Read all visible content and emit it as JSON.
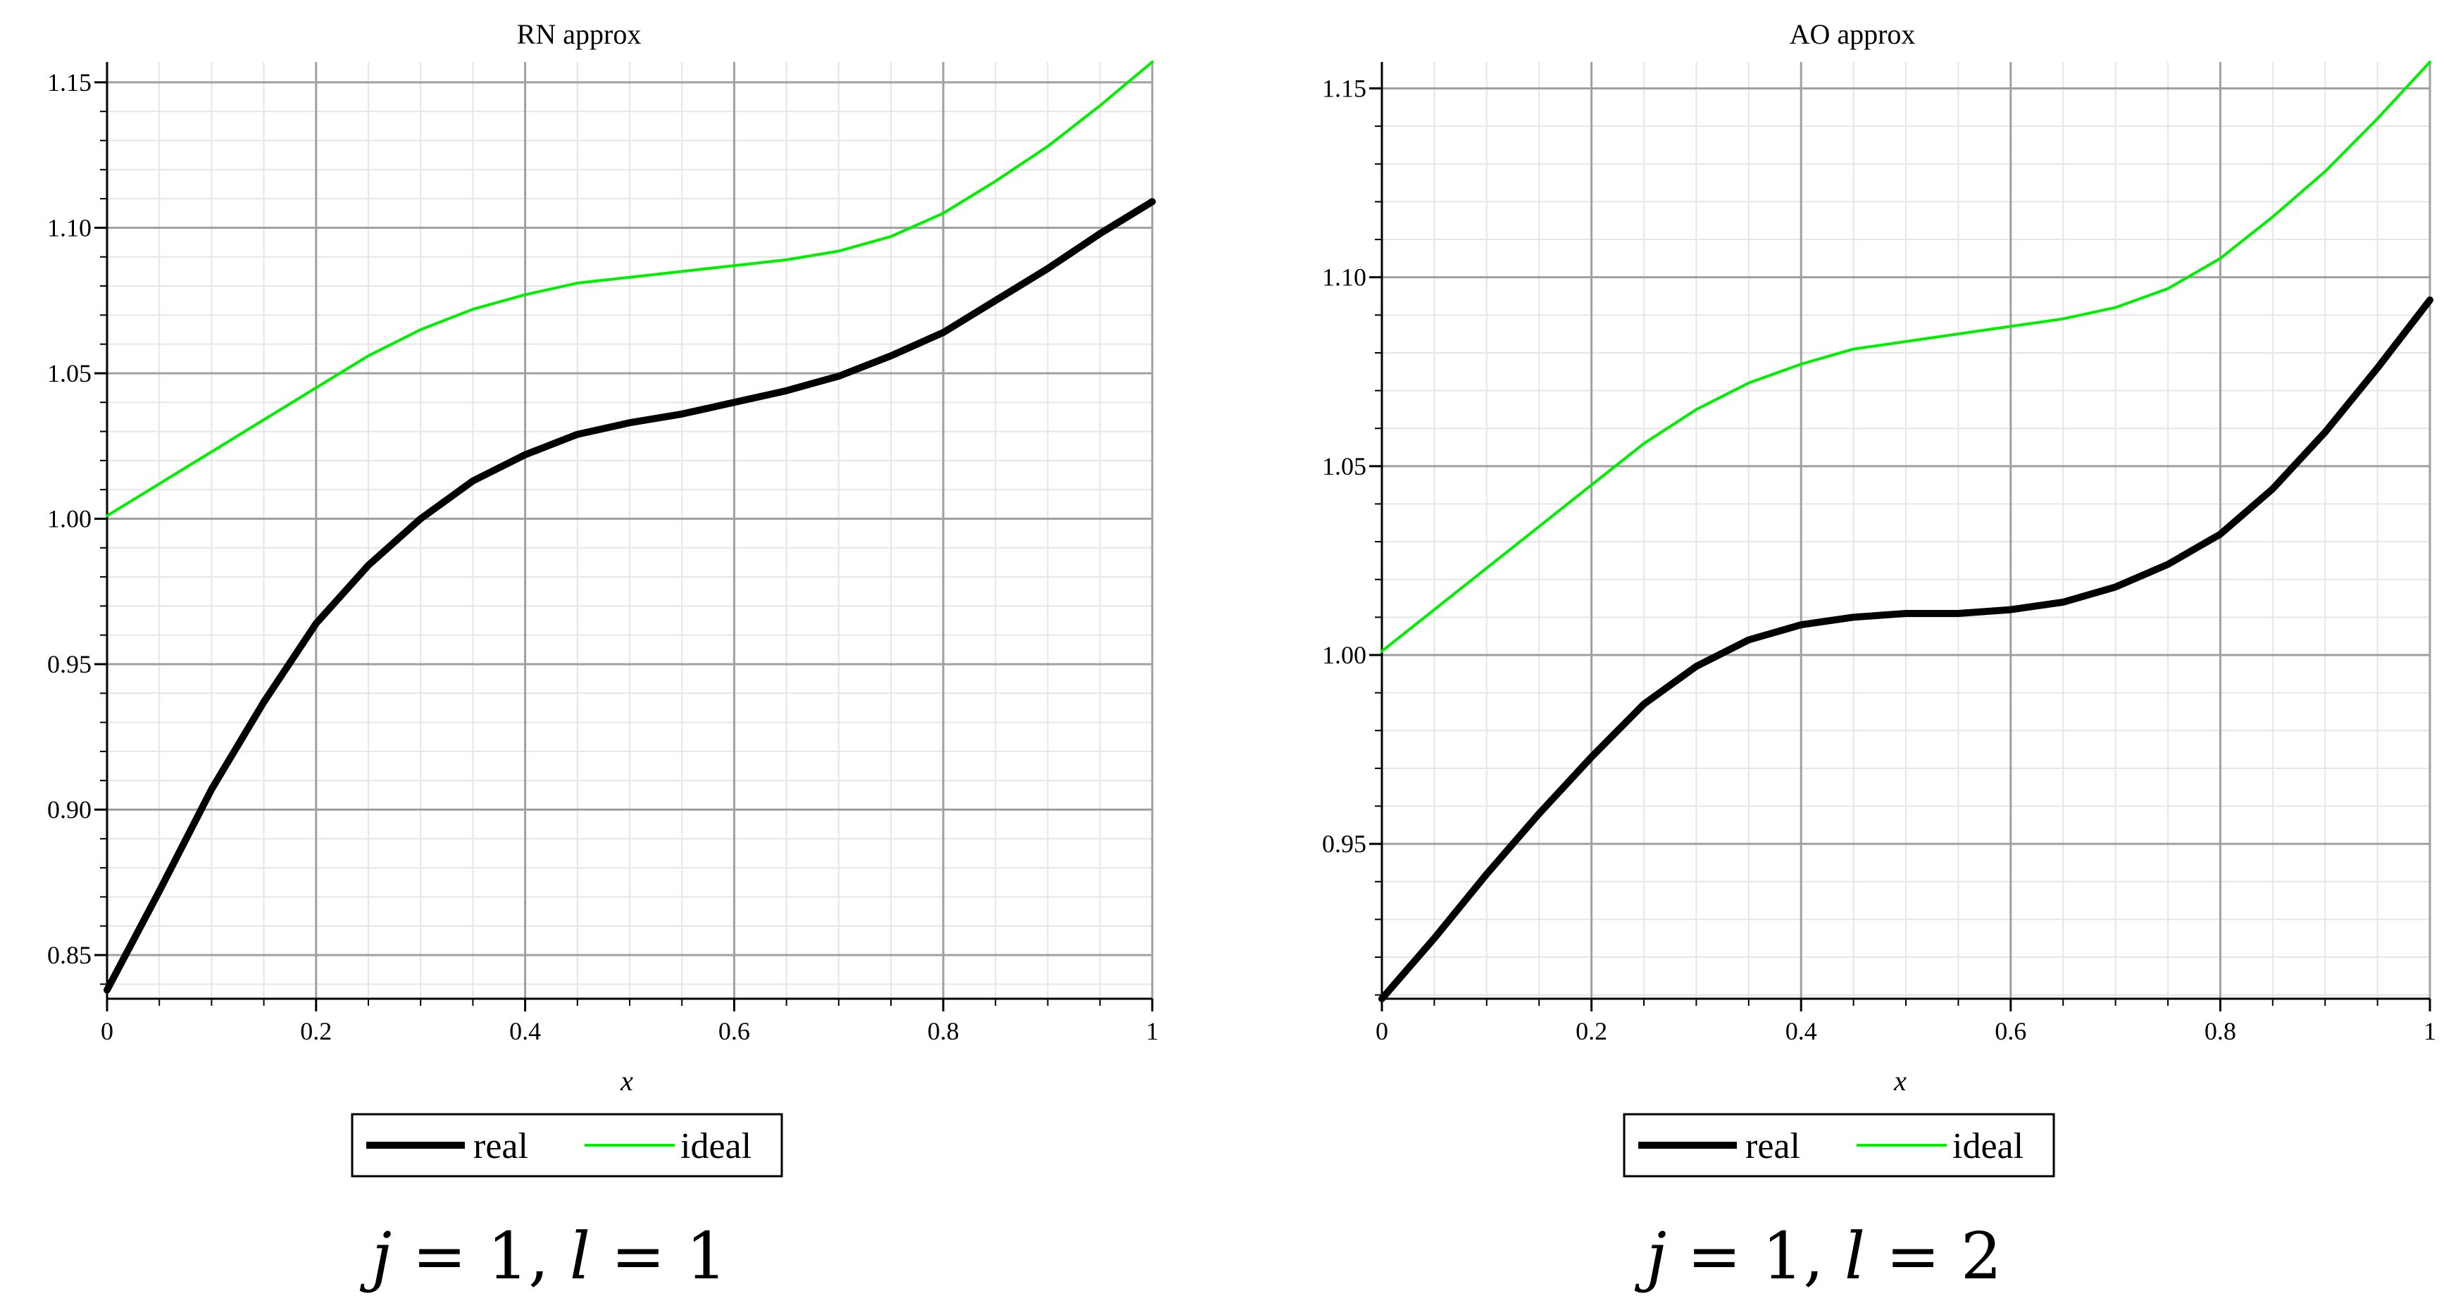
{
  "chart_data": [
    {
      "type": "line",
      "title": "RN  approx",
      "xlabel": "x",
      "ylabel": "",
      "xlim": [
        0,
        1
      ],
      "ylim": [
        0.835,
        1.157
      ],
      "xticks": [
        0,
        0.2,
        0.4,
        0.6,
        0.8,
        1
      ],
      "xtick_labels": [
        "0",
        "0.2",
        "0.4",
        "0.6",
        "0.8",
        "1"
      ],
      "yticks": [
        0.85,
        0.9,
        0.95,
        1.0,
        1.05,
        1.1,
        1.15
      ],
      "ytick_labels": [
        "0.85",
        "0.90",
        "0.95",
        "1.00",
        "1.05",
        "1.10",
        "1.15"
      ],
      "grid": true,
      "legend_position": "bottom-center",
      "series": [
        {
          "name": "real",
          "color": "#000000",
          "x": [
            0,
            0.05,
            0.1,
            0.15,
            0.2,
            0.25,
            0.3,
            0.35,
            0.4,
            0.45,
            0.5,
            0.55,
            0.6,
            0.65,
            0.7,
            0.75,
            0.8,
            0.85,
            0.9,
            0.95,
            1
          ],
          "y": [
            0.838,
            0.872,
            0.907,
            0.937,
            0.964,
            0.984,
            1.0,
            1.013,
            1.022,
            1.029,
            1.033,
            1.036,
            1.04,
            1.044,
            1.049,
            1.056,
            1.064,
            1.075,
            1.086,
            1.098,
            1.109
          ]
        },
        {
          "name": "ideal",
          "color": "#00ee00",
          "x": [
            0,
            0.05,
            0.1,
            0.15,
            0.2,
            0.25,
            0.3,
            0.35,
            0.4,
            0.45,
            0.5,
            0.55,
            0.6,
            0.65,
            0.7,
            0.75,
            0.8,
            0.85,
            0.9,
            0.95,
            1
          ],
          "y": [
            1.001,
            1.012,
            1.023,
            1.034,
            1.045,
            1.056,
            1.065,
            1.072,
            1.077,
            1.081,
            1.083,
            1.085,
            1.087,
            1.089,
            1.092,
            1.097,
            1.105,
            1.116,
            1.128,
            1.142,
            1.157
          ]
        }
      ]
    },
    {
      "type": "line",
      "title": "AO  approx",
      "xlabel": "x",
      "ylabel": "",
      "xlim": [
        0,
        1
      ],
      "ylim": [
        0.909,
        1.157
      ],
      "xticks": [
        0,
        0.2,
        0.4,
        0.6,
        0.8,
        1
      ],
      "xtick_labels": [
        "0",
        "0.2",
        "0.4",
        "0.6",
        "0.8",
        "1"
      ],
      "yticks": [
        0.95,
        1.0,
        1.05,
        1.1,
        1.15
      ],
      "ytick_labels": [
        "0.95",
        "1.00",
        "1.05",
        "1.10",
        "1.15"
      ],
      "grid": true,
      "legend_position": "bottom-center",
      "series": [
        {
          "name": "real",
          "color": "#000000",
          "x": [
            0,
            0.05,
            0.1,
            0.15,
            0.2,
            0.25,
            0.3,
            0.35,
            0.4,
            0.45,
            0.5,
            0.55,
            0.6,
            0.65,
            0.7,
            0.75,
            0.8,
            0.85,
            0.9,
            0.95,
            1
          ],
          "y": [
            0.909,
            0.925,
            0.942,
            0.958,
            0.973,
            0.987,
            0.997,
            1.004,
            1.008,
            1.01,
            1.011,
            1.011,
            1.012,
            1.014,
            1.018,
            1.024,
            1.032,
            1.044,
            1.059,
            1.076,
            1.094
          ]
        },
        {
          "name": "ideal",
          "color": "#00ee00",
          "x": [
            0,
            0.05,
            0.1,
            0.15,
            0.2,
            0.25,
            0.3,
            0.35,
            0.4,
            0.45,
            0.5,
            0.55,
            0.6,
            0.65,
            0.7,
            0.75,
            0.8,
            0.85,
            0.9,
            0.95,
            1
          ],
          "y": [
            1.001,
            1.012,
            1.023,
            1.034,
            1.045,
            1.056,
            1.065,
            1.072,
            1.077,
            1.081,
            1.083,
            1.085,
            1.087,
            1.089,
            1.092,
            1.097,
            1.105,
            1.116,
            1.128,
            1.142,
            1.157
          ]
        }
      ]
    }
  ],
  "captions": [
    {
      "j": "j",
      "eq": "= 1,",
      "l": "l",
      "eq2": "= 1"
    },
    {
      "j": "j",
      "eq": "= 1,",
      "l": "l",
      "eq2": "= 2"
    }
  ]
}
